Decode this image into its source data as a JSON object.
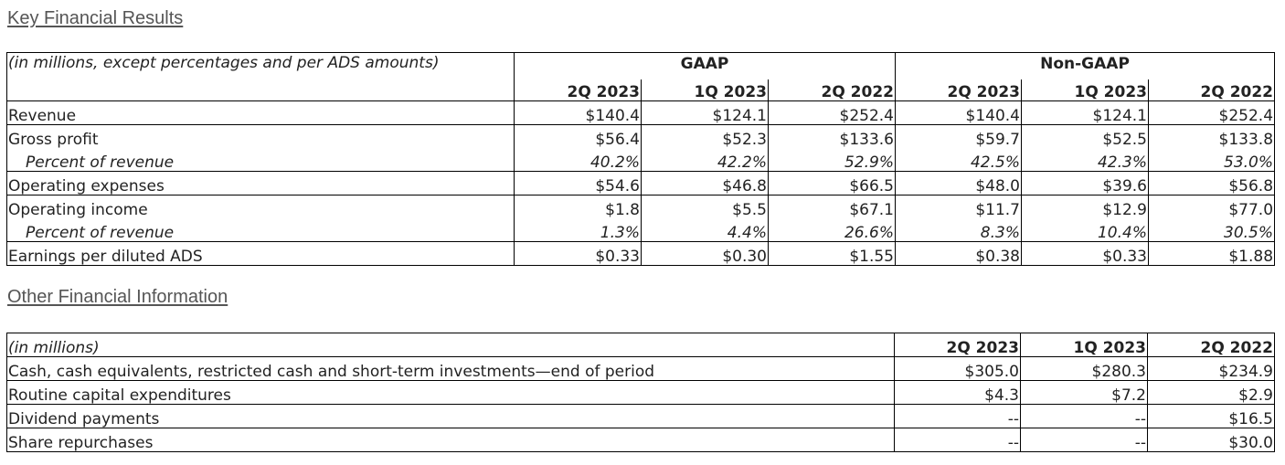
{
  "key": {
    "title": "Key Financial Results",
    "caption": "(in millions, except percentages and per ADS amounts)",
    "group_gaap": "GAAP",
    "group_non_gaap": "Non-GAAP",
    "columns": [
      "2Q 2023",
      "1Q 2023",
      "2Q 2022",
      "2Q 2023",
      "1Q 2023",
      "2Q 2022"
    ],
    "rows": [
      {
        "label": "Revenue",
        "values": [
          "$140.4",
          "$124.1",
          "$252.4",
          "$140.4",
          "$124.1",
          "$252.4"
        ]
      },
      {
        "label": "Gross profit",
        "values": [
          "$56.4",
          "$52.3",
          "$133.6",
          "$59.7",
          "$52.5",
          "$133.8"
        ]
      },
      {
        "label": "Percent of revenue",
        "values": [
          "40.2%",
          "42.2%",
          "52.9%",
          "42.5%",
          "42.3%",
          "53.0%"
        ]
      },
      {
        "label": "Operating expenses",
        "values": [
          "$54.6",
          "$46.8",
          "$66.5",
          "$48.0",
          "$39.6",
          "$56.8"
        ]
      },
      {
        "label": "Operating income",
        "values": [
          "$1.8",
          "$5.5",
          "$67.1",
          "$11.7",
          "$12.9",
          "$77.0"
        ]
      },
      {
        "label": "Percent of revenue",
        "values": [
          "1.3%",
          "4.4%",
          "26.6%",
          "8.3%",
          "10.4%",
          "30.5%"
        ]
      },
      {
        "label": "Earnings per diluted ADS",
        "values": [
          "$0.33",
          "$0.30",
          "$1.55",
          "$0.38",
          "$0.33",
          "$1.88"
        ]
      }
    ]
  },
  "other": {
    "title": "Other Financial Information",
    "caption": "(in millions)",
    "columns": [
      "2Q 2023",
      "1Q 2023",
      "2Q 2022"
    ],
    "rows": [
      {
        "label": "Cash, cash equivalents, restricted cash and short-term investments—end of period",
        "values": [
          "$305.0",
          "$280.3",
          "$234.9"
        ]
      },
      {
        "label": "Routine capital expenditures",
        "values": [
          "$4.3",
          "$7.2",
          "$2.9"
        ]
      },
      {
        "label": "Dividend payments",
        "values": [
          "--",
          "--",
          "$16.5"
        ]
      },
      {
        "label": "Share repurchases",
        "values": [
          "--",
          "--",
          "$30.0"
        ]
      }
    ]
  }
}
